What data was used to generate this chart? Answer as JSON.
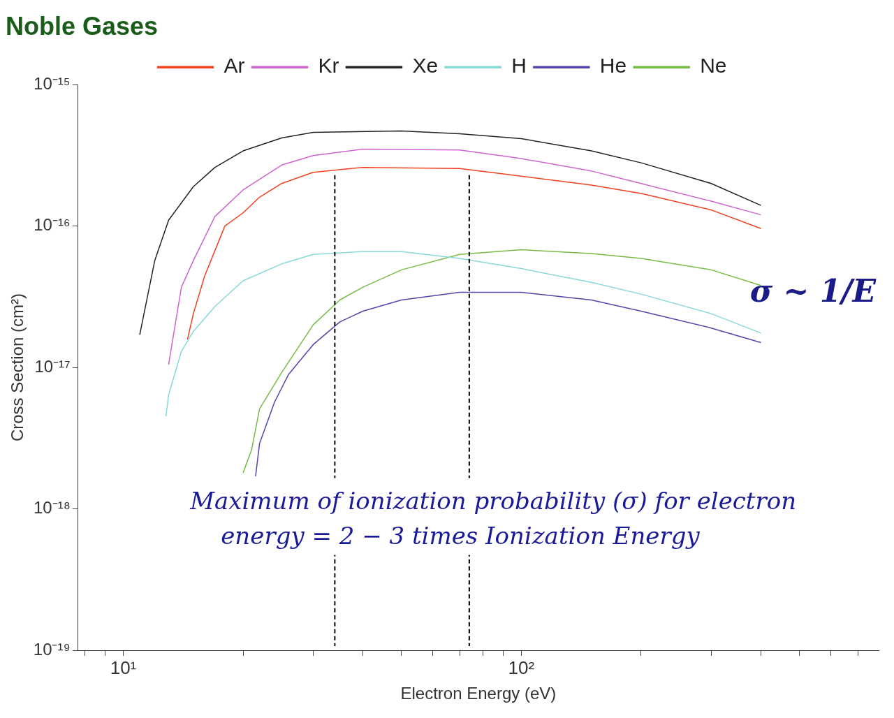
{
  "chart_data": {
    "type": "line",
    "title": "Noble Gases",
    "xlabel": "Electron Energy (eV)",
    "ylabel": "Cross Section (cm²)",
    "log": "xy",
    "xlim": [
      7.7,
      790
    ],
    "ylim": [
      1e-19,
      1e-15
    ],
    "xticks": [
      {
        "value": 8,
        "label": null
      },
      {
        "value": 9,
        "label": null
      },
      {
        "value": 10,
        "label": "10¹"
      },
      {
        "value": 20,
        "label": null
      },
      {
        "value": 30,
        "label": null
      },
      {
        "value": 40,
        "label": null
      },
      {
        "value": 50,
        "label": null
      },
      {
        "value": 60,
        "label": null
      },
      {
        "value": 70,
        "label": null
      },
      {
        "value": 80,
        "label": null
      },
      {
        "value": 90,
        "label": null
      },
      {
        "value": 100,
        "label": "10²"
      },
      {
        "value": 200,
        "label": null
      },
      {
        "value": 300,
        "label": null
      },
      {
        "value": 400,
        "label": null
      },
      {
        "value": 500,
        "label": null
      },
      {
        "value": 600,
        "label": null
      },
      {
        "value": 700,
        "label": null
      }
    ],
    "yticks": [
      {
        "value": 1e-19,
        "label": "10⁻¹⁹"
      },
      {
        "value": 1e-18,
        "label": "10⁻¹⁸"
      },
      {
        "value": 1e-17,
        "label": "10⁻¹⁷"
      },
      {
        "value": 1e-16,
        "label": "10⁻¹⁶"
      },
      {
        "value": 1e-15,
        "label": "10⁻¹⁵"
      }
    ],
    "grid": false,
    "legend": "top",
    "marker": "none",
    "line_style": "solid",
    "series": [
      {
        "name": "Ar",
        "color": "#f04020",
        "x": [
          14.5,
          15,
          16,
          18,
          20,
          22,
          25,
          30,
          40,
          70,
          100,
          150,
          200,
          300,
          400
        ],
        "values": [
          1.58e-17,
          2.4e-17,
          4.4e-17,
          1e-16,
          1.24e-16,
          1.6e-16,
          2e-16,
          2.4e-16,
          2.6e-16,
          2.55e-16,
          2.25e-16,
          1.95e-16,
          1.7e-16,
          1.3e-16,
          9.6e-17
        ]
      },
      {
        "name": "Kr",
        "color": "#cc66cc",
        "x": [
          13,
          14,
          15,
          17,
          20,
          25,
          30,
          40,
          70,
          100,
          150,
          200,
          300,
          400
        ],
        "values": [
          1.05e-17,
          3.7e-17,
          5.7e-17,
          1.17e-16,
          1.8e-16,
          2.7e-16,
          3.15e-16,
          3.5e-16,
          3.45e-16,
          3e-16,
          2.45e-16,
          2e-16,
          1.5e-16,
          1.2e-16
        ]
      },
      {
        "name": "Xe",
        "color": "#222222",
        "x": [
          11,
          12,
          13,
          15,
          17,
          20,
          25,
          30,
          50,
          70,
          100,
          150,
          200,
          300,
          400
        ],
        "values": [
          1.7e-17,
          5.7e-17,
          1.1e-16,
          1.9e-16,
          2.6e-16,
          3.4e-16,
          4.2e-16,
          4.6e-16,
          4.7e-16,
          4.5e-16,
          4.15e-16,
          3.4e-16,
          2.8e-16,
          2e-16,
          1.4e-16
        ]
      },
      {
        "name": "H",
        "color": "#88d8d8",
        "x": [
          12.8,
          13,
          14,
          15,
          17,
          20,
          25,
          30,
          40,
          50,
          70,
          100,
          150,
          200,
          300,
          400
        ],
        "values": [
          4.5e-18,
          6.4e-18,
          1.3e-17,
          1.8e-17,
          2.7e-17,
          4.1e-17,
          5.4e-17,
          6.3e-17,
          6.6e-17,
          6.6e-17,
          5.9e-17,
          5e-17,
          4e-17,
          3.3e-17,
          2.4e-17,
          1.75e-17
        ]
      },
      {
        "name": "He",
        "color": "#5544aa",
        "x": [
          21.5,
          22,
          24,
          26,
          30,
          35,
          40,
          50,
          70,
          100,
          150,
          200,
          300,
          400
        ],
        "values": [
          1.7e-18,
          2.9e-18,
          5.7e-18,
          8.9e-18,
          1.45e-17,
          2.1e-17,
          2.5e-17,
          3e-17,
          3.4e-17,
          3.4e-17,
          3e-17,
          2.5e-17,
          1.9e-17,
          1.5e-17
        ]
      },
      {
        "name": "Ne",
        "color": "#77bb44",
        "x": [
          20,
          21,
          22,
          25,
          30,
          35,
          40,
          50,
          70,
          100,
          150,
          200,
          300,
          400
        ],
        "values": [
          1.8e-18,
          2.6e-18,
          5.1e-18,
          9.2e-18,
          2e-17,
          3e-17,
          3.7e-17,
          4.9e-17,
          6.3e-17,
          6.8e-17,
          6.4e-17,
          5.9e-17,
          4.9e-17,
          3.8e-17
        ]
      }
    ],
    "ref_lines": [
      {
        "axis": "x",
        "value": 34,
        "color": "#000000",
        "line_style": "dashed"
      },
      {
        "axis": "x",
        "value": 74,
        "color": "#000000",
        "line_style": "dashed"
      }
    ],
    "annotations": [
      "Maximum of ionization probability (σ) for electron energy = 2 − 3 times Ionization Energy",
      "σ ~ 1/E"
    ]
  }
}
